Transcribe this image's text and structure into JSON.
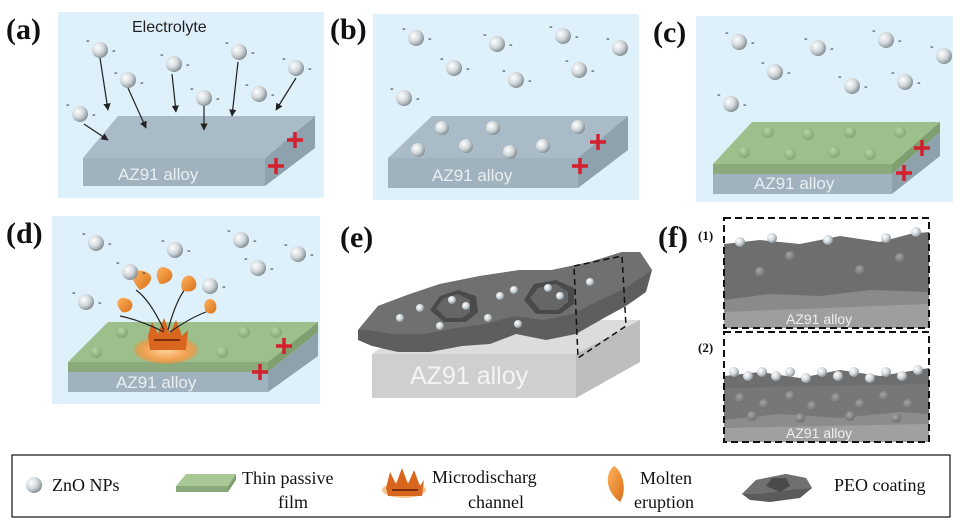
{
  "panels": {
    "a": {
      "label": "(a)",
      "electrolyte": "Electrolyte",
      "alloy": "AZ91 alloy"
    },
    "b": {
      "label": "(b)",
      "alloy": "AZ91 alloy"
    },
    "c": {
      "label": "(c)",
      "alloy": "AZ91 alloy"
    },
    "d": {
      "label": "(d)",
      "alloy": "AZ91 alloy"
    },
    "e": {
      "label": "(e)",
      "alloy": "AZ91 alloy"
    },
    "f": {
      "label": "(f)",
      "sub1": "(1)",
      "sub2": "(2)",
      "alloy1": "AZ91 alloy",
      "alloy2": "AZ91 alloy"
    }
  },
  "charge": {
    "negative": "-"
  },
  "legend": {
    "zno": "ZnO NPs",
    "film_line1": "Thin passive",
    "film_line2": "film",
    "micro_line1": "Microdischarg",
    "micro_line2": "channel",
    "molten_line1": "Molten",
    "molten_line2": "eruption",
    "peo": "PEO coating"
  },
  "colors": {
    "electrolyte": "#def0fa",
    "alloy_top": "#a9bbc6",
    "alloy_front": "#9fb2bd",
    "passive_film": "#9dbf8c",
    "plus_sign": "#d3202c",
    "molten": "#e98a2a",
    "peo_coating": "#5b5b5b"
  }
}
